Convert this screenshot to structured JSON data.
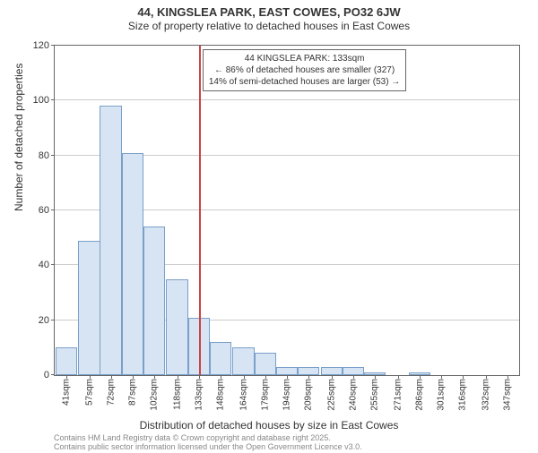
{
  "title_line1": "44, KINGSLEA PARK, EAST COWES, PO32 6JW",
  "title_line2": "Size of property relative to detached houses in East Cowes",
  "ylabel": "Number of detached properties",
  "xlabel": "Distribution of detached houses by size in East Cowes",
  "footnote1": "Contains HM Land Registry data © Crown copyright and database right 2025.",
  "footnote2": "Contains public sector information licensed under the Open Government Licence v3.0.",
  "chart": {
    "type": "histogram",
    "background_color": "#ffffff",
    "grid_color": "#cccccc",
    "border_color": "#666666",
    "bar_fill": "#d7e4f4",
    "bar_stroke": "#7a9fc9",
    "reference_line_color": "#cc4444",
    "reference_x_value": 133,
    "xlim": [
      33,
      355
    ],
    "ylim": [
      0,
      120
    ],
    "ytick_step": 20,
    "yticks": [
      0,
      20,
      40,
      60,
      80,
      100,
      120
    ],
    "xticks": [
      41,
      57,
      72,
      87,
      102,
      118,
      133,
      148,
      164,
      179,
      194,
      209,
      225,
      240,
      255,
      271,
      286,
      301,
      316,
      332,
      347
    ],
    "xtick_suffix": "sqm",
    "label_fontsize": 12,
    "tick_fontsize": 11,
    "bars": [
      {
        "x": 41,
        "count": 10
      },
      {
        "x": 57,
        "count": 49
      },
      {
        "x": 72,
        "count": 98
      },
      {
        "x": 87,
        "count": 81
      },
      {
        "x": 102,
        "count": 54
      },
      {
        "x": 118,
        "count": 35
      },
      {
        "x": 133,
        "count": 21
      },
      {
        "x": 148,
        "count": 12
      },
      {
        "x": 164,
        "count": 10
      },
      {
        "x": 179,
        "count": 8
      },
      {
        "x": 194,
        "count": 3
      },
      {
        "x": 209,
        "count": 3
      },
      {
        "x": 225,
        "count": 3
      },
      {
        "x": 240,
        "count": 3
      },
      {
        "x": 255,
        "count": 1
      },
      {
        "x": 271,
        "count": 0
      },
      {
        "x": 286,
        "count": 1
      },
      {
        "x": 301,
        "count": 0
      },
      {
        "x": 316,
        "count": 0
      },
      {
        "x": 332,
        "count": 0
      },
      {
        "x": 347,
        "count": 0
      }
    ],
    "bar_bin_width": 15.3,
    "annotation": {
      "line1": "44 KINGSLEA PARK: 133sqm",
      "line2": "← 86% of detached houses are smaller (327)",
      "line3": "14% of semi-detached houses are larger (53) →"
    }
  }
}
